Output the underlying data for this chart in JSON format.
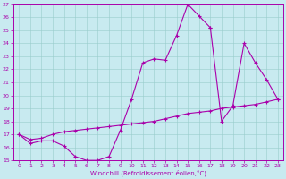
{
  "xlabel": "Windchill (Refroidissement éolien,°C)",
  "xlim": [
    -0.5,
    23.5
  ],
  "ylim": [
    15,
    27
  ],
  "xticks": [
    0,
    1,
    2,
    3,
    4,
    5,
    6,
    7,
    8,
    9,
    10,
    11,
    12,
    13,
    14,
    15,
    16,
    17,
    18,
    19,
    20,
    21,
    22,
    23
  ],
  "yticks": [
    15,
    16,
    17,
    18,
    19,
    20,
    21,
    22,
    23,
    24,
    25,
    26,
    27
  ],
  "bg_color": "#c8eaf0",
  "line_color": "#aa00aa",
  "grid_color": "#99cccc",
  "seg1_x": [
    0,
    1,
    2,
    3,
    4,
    5,
    6,
    7,
    8,
    9,
    10,
    11,
    12,
    13,
    14,
    15,
    16,
    17
  ],
  "seg1_y": [
    17.0,
    16.3,
    16.5,
    16.5,
    16.1,
    15.3,
    15.0,
    15.0,
    15.3,
    17.3,
    19.7,
    22.5,
    22.8,
    22.7,
    24.6,
    27.0,
    26.1,
    25.2
  ],
  "seg2_x": [
    17,
    18,
    19,
    20,
    21,
    22,
    23
  ],
  "seg2_y": [
    25.2,
    18.0,
    19.2,
    24.0,
    22.5,
    21.2,
    19.7
  ],
  "seg3_x": [
    0,
    1,
    2,
    3,
    4,
    5,
    6,
    7,
    8,
    9,
    10,
    11,
    12,
    13,
    14,
    15,
    16,
    17,
    18,
    19,
    20,
    21,
    22,
    23
  ],
  "seg3_y": [
    17.0,
    16.6,
    16.7,
    17.0,
    17.2,
    17.3,
    17.4,
    17.5,
    17.6,
    17.7,
    17.8,
    17.9,
    18.0,
    18.2,
    18.4,
    18.6,
    18.7,
    18.8,
    19.0,
    19.1,
    19.2,
    19.3,
    19.5,
    19.7
  ]
}
